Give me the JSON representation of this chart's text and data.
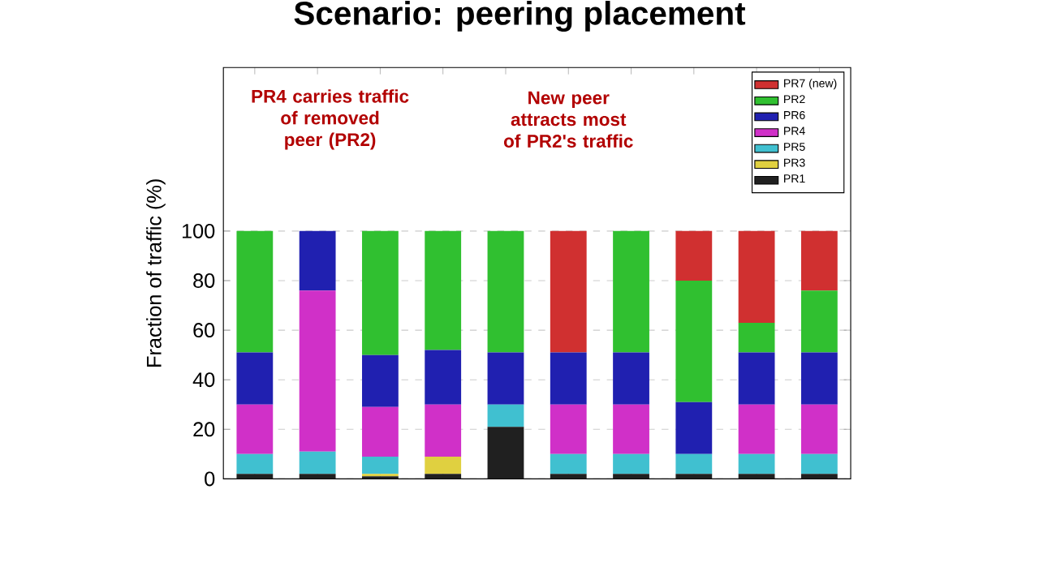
{
  "chart_data": {
    "type": "bar",
    "title": "Scenario: peering placement",
    "ylabel": "Fraction of traffic (%)",
    "annotations": [
      "PR4 carries traffic of removed peer (PR2)",
      "New peer attracts most of PR2's traffic"
    ],
    "categories": [
      null,
      null,
      null,
      null,
      null,
      null,
      null,
      null,
      null,
      null
    ],
    "stacked": true,
    "grid": "y",
    "legend": "top right",
    "ylim": [
      0,
      166
    ],
    "yticks": [
      0,
      20,
      40,
      60,
      80,
      100
    ],
    "series": [
      {
        "name": "PR1",
        "color": "#202020",
        "values": [
          2,
          2,
          1,
          2,
          21,
          2,
          2,
          2,
          2,
          2
        ]
      },
      {
        "name": "PR3",
        "color": "#e0d040",
        "values": [
          0,
          0,
          1,
          7,
          0,
          0,
          0,
          0,
          0,
          0
        ]
      },
      {
        "name": "PR5",
        "color": "#40c0d0",
        "values": [
          8,
          9,
          7,
          0,
          9,
          8,
          8,
          8,
          8,
          8
        ]
      },
      {
        "name": "PR4",
        "color": "#d030c8",
        "values": [
          20,
          65,
          20,
          21,
          0,
          20,
          20,
          0,
          20,
          20
        ]
      },
      {
        "name": "PR6",
        "color": "#2020b0",
        "values": [
          21,
          24,
          21,
          22,
          21,
          21,
          21,
          21,
          21,
          21
        ]
      },
      {
        "name": "PR2",
        "color": "#30c030",
        "values": [
          49,
          0,
          50,
          48,
          49,
          0,
          49,
          49,
          12,
          25
        ]
      },
      {
        "name": "PR7 (new)",
        "color": "#d03030",
        "values": [
          0,
          0,
          0,
          0,
          0,
          49,
          0,
          20,
          37,
          24
        ]
      }
    ]
  }
}
